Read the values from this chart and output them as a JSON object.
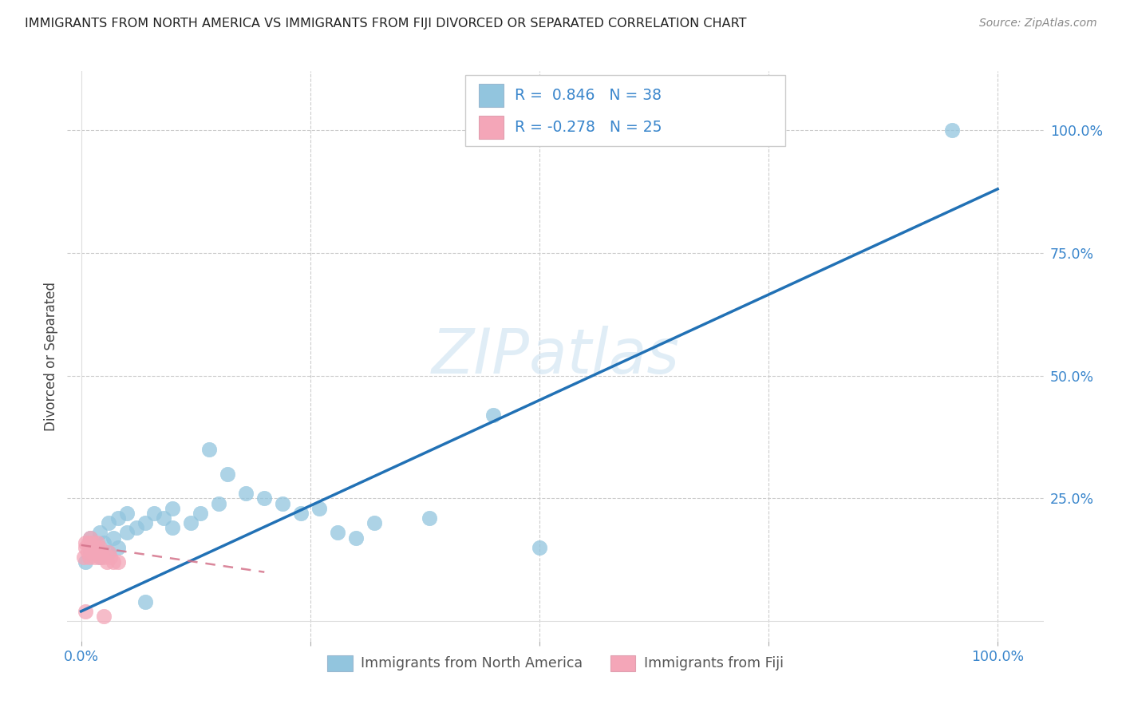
{
  "title": "IMMIGRANTS FROM NORTH AMERICA VS IMMIGRANTS FROM FIJI DIVORCED OR SEPARATED CORRELATION CHART",
  "source": "Source: ZipAtlas.com",
  "ylabel": "Divorced or Separated",
  "legend_label1": "Immigrants from North America",
  "legend_label2": "Immigrants from Fiji",
  "watermark": "ZIPatlas",
  "blue_color": "#92c5de",
  "pink_color": "#f4a6b8",
  "line_blue": "#2171b5",
  "line_pink": "#d4728a",
  "axis_color": "#3a86cc",
  "title_color": "#222222",
  "source_color": "#888888",
  "ylabel_color": "#444444",
  "north_america_x": [
    0.005,
    0.01,
    0.01,
    0.015,
    0.02,
    0.02,
    0.025,
    0.03,
    0.03,
    0.035,
    0.04,
    0.04,
    0.05,
    0.05,
    0.06,
    0.07,
    0.08,
    0.09,
    0.1,
    0.1,
    0.12,
    0.13,
    0.14,
    0.15,
    0.16,
    0.18,
    0.2,
    0.22,
    0.24,
    0.26,
    0.28,
    0.3,
    0.32,
    0.38,
    0.45,
    0.5,
    0.95,
    0.07
  ],
  "north_america_y": [
    0.12,
    0.14,
    0.17,
    0.15,
    0.13,
    0.18,
    0.16,
    0.14,
    0.2,
    0.17,
    0.15,
    0.21,
    0.18,
    0.22,
    0.19,
    0.2,
    0.22,
    0.21,
    0.23,
    0.19,
    0.2,
    0.22,
    0.35,
    0.24,
    0.3,
    0.26,
    0.25,
    0.24,
    0.22,
    0.23,
    0.18,
    0.17,
    0.2,
    0.21,
    0.42,
    0.15,
    1.0,
    0.04
  ],
  "fiji_x": [
    0.003,
    0.005,
    0.005,
    0.007,
    0.008,
    0.009,
    0.01,
    0.01,
    0.012,
    0.013,
    0.015,
    0.015,
    0.017,
    0.018,
    0.02,
    0.02,
    0.022,
    0.025,
    0.028,
    0.03,
    0.032,
    0.035,
    0.04,
    0.005,
    0.025
  ],
  "fiji_y": [
    0.13,
    0.15,
    0.16,
    0.14,
    0.16,
    0.13,
    0.15,
    0.17,
    0.14,
    0.16,
    0.13,
    0.15,
    0.14,
    0.16,
    0.13,
    0.15,
    0.14,
    0.13,
    0.12,
    0.14,
    0.13,
    0.12,
    0.12,
    0.02,
    0.01
  ],
  "blue_line_x": [
    0.0,
    1.0
  ],
  "blue_line_y": [
    0.02,
    0.88
  ],
  "pink_line_x": [
    0.0,
    0.2
  ],
  "pink_line_y": [
    0.155,
    0.1
  ],
  "xlim": [
    -0.015,
    1.05
  ],
  "ylim": [
    -0.04,
    1.12
  ],
  "ytick_vals": [
    0.0,
    0.25,
    0.5,
    0.75,
    1.0
  ],
  "ytick_labels": [
    "",
    "25.0%",
    "50.0%",
    "75.0%",
    "100.0%"
  ],
  "xtick_vals": [
    0.0,
    0.25,
    0.5,
    0.75,
    1.0
  ],
  "xtick_labels": [
    "0.0%",
    "",
    "",
    "",
    "100.0%"
  ]
}
